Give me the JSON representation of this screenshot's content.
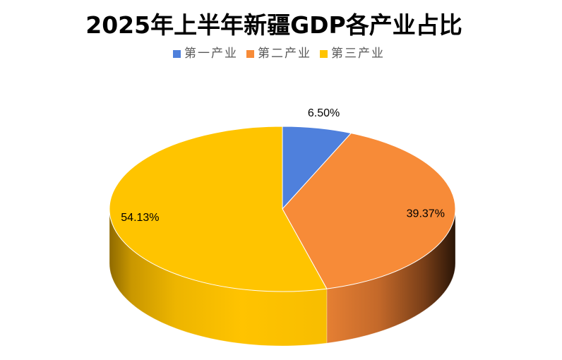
{
  "chart_data": {
    "type": "pie",
    "three_d": true,
    "title": "2025年上半年新疆GDP各产业占比",
    "categories": [
      "第一产业",
      "第二产业",
      "第三产业"
    ],
    "values": [
      6.5,
      39.37,
      54.13
    ],
    "data_labels": [
      "6.50%",
      "39.37%",
      "54.13%"
    ],
    "colors": [
      "#4F80DC",
      "#F78B38",
      "#FFC400"
    ],
    "legend_position": "top"
  }
}
